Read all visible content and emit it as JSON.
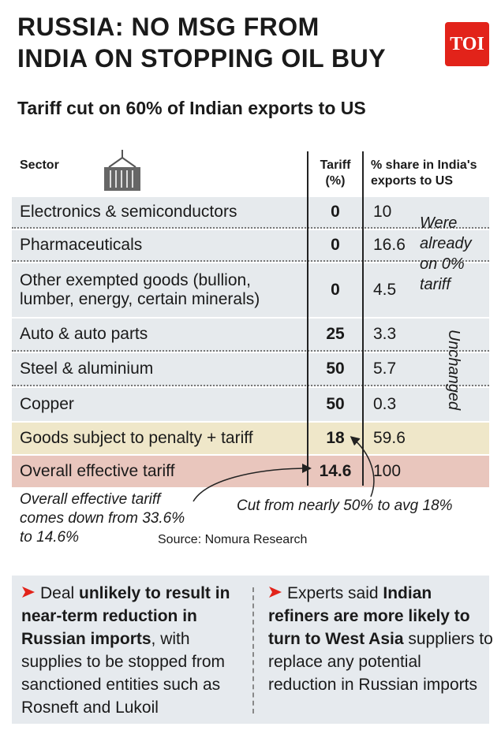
{
  "header": {
    "title_lines": [
      "RUSSIA: NO MSG FROM",
      "INDIA ON STOPPING OIL BUY"
    ],
    "logo": "TOI",
    "subtitle": "Tariff cut on 60% of Indian exports to US"
  },
  "table": {
    "columns": [
      "Sector",
      "Tariff (%)",
      "% share in India's exports to US"
    ],
    "rows": [
      [
        "Electronics & semiconductors",
        0,
        10
      ],
      [
        "Pharmaceuticals",
        0,
        16.6
      ],
      [
        "Other exempted goods (bullion, lumber, energy, certain minerals)",
        0,
        4.5
      ],
      [
        "Auto & auto parts",
        25,
        3.3
      ],
      [
        "Steel & aluminium",
        50,
        5.7
      ],
      [
        "Copper",
        50,
        0.3
      ],
      [
        "Goods subject to penalty + tariff",
        18,
        59.6
      ],
      [
        "Overall effective tariff",
        14.6,
        100
      ]
    ],
    "notes": [
      "Were already on 0% tariff",
      "Unchanged"
    ]
  },
  "annotations": [
    "Overall effective tariff comes down from 33.6% to 14.6%",
    "Cut from nearly 50% to avg 18%"
  ],
  "source": "Source: Nomura Research",
  "bullets": [
    [
      {
        "text": "Deal ",
        "bold": false
      },
      {
        "text": "unlikely to result in near-term reduction in Russian imports",
        "bold": true
      },
      {
        "text": ", with supplies to be stopped from sanctioned entities such as Rosneft and Lukoil",
        "bold": false
      }
    ],
    [
      {
        "text": "Experts said ",
        "bold": false
      },
      {
        "text": "Indian refiners are more likely to turn to West Asia",
        "bold": true
      },
      {
        "text": " suppliers to replace any potential reduction in Russian imports",
        "bold": false
      }
    ]
  ]
}
